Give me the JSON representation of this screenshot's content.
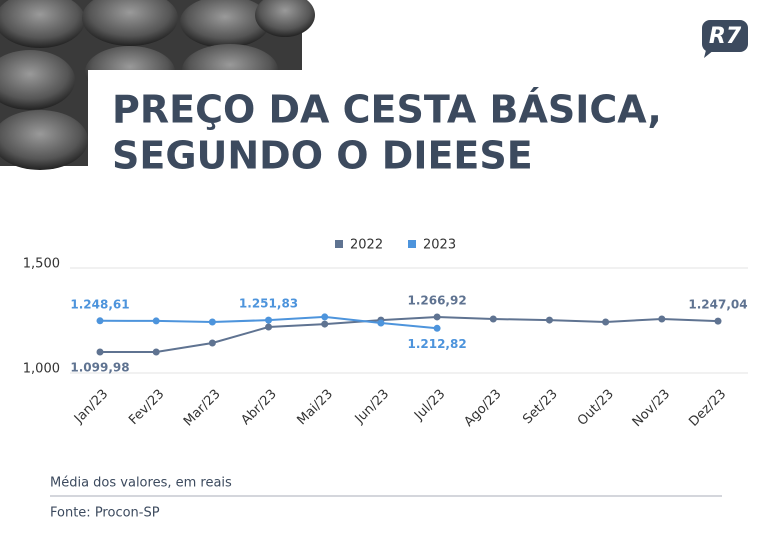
{
  "chart_data": {
    "type": "line",
    "title": [
      "PREÇO DA CESTA BÁSICA,",
      "SEGUNDO O DIEESE"
    ],
    "logo": "R7",
    "categories": [
      "Jan/23",
      "Fev/23",
      "Mar/23",
      "Abr/23",
      "Mai/23",
      "Jun/23",
      "Jul/23",
      "Ago/23",
      "Set/23",
      "Out/23",
      "Nov/23",
      "Dez/23"
    ],
    "series": [
      {
        "name": "2022",
        "color": "#5f7391",
        "values": [
          1099.98,
          1100,
          1143,
          1219,
          1233,
          1252,
          1266.92,
          1257,
          1252,
          1243,
          1257,
          1247.04
        ],
        "value_labels": [
          "1.099,98",
          null,
          null,
          null,
          null,
          null,
          "1.266,92",
          null,
          null,
          null,
          null,
          "1.247,04"
        ]
      },
      {
        "name": "2023",
        "color": "#4d94dc",
        "values": [
          1248.61,
          1248,
          1243,
          1251.83,
          1267,
          1238,
          1212.82,
          null,
          null,
          null,
          null,
          null
        ],
        "value_labels": [
          "1.248,61",
          null,
          null,
          "1.251,83",
          null,
          null,
          "1.212,82",
          null,
          null,
          null,
          null,
          null
        ]
      }
    ],
    "ylim": [
      1000,
      1500
    ],
    "yticks": [
      {
        "value": 1000,
        "label": "1,000"
      },
      {
        "value": 1500,
        "label": "1,500"
      }
    ],
    "grid": true,
    "legend": "top",
    "note": "Média dos valores, em reais",
    "source": "Fonte: Procon-SP"
  }
}
